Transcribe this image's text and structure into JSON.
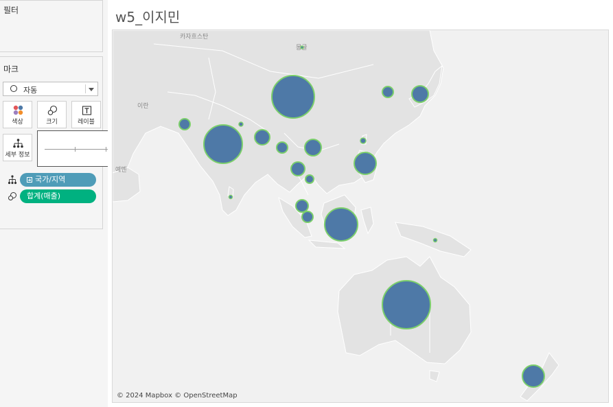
{
  "filters": {
    "title": "필터"
  },
  "marks": {
    "title": "마크",
    "mark_type": "자동",
    "buttons": {
      "color": "색상",
      "size": "크기",
      "label": "레이블",
      "detail": "세부 정보"
    },
    "pills": [
      {
        "label": "국가/지역",
        "kind": "detail",
        "color": "#4f9cb8"
      },
      {
        "label": "합계(매출)",
        "kind": "size",
        "color": "#00b180"
      }
    ]
  },
  "size_slider": {
    "value_fraction": 0.68
  },
  "sheet": {
    "title": "w5_이지민"
  },
  "map": {
    "credit": "© 2024 Mapbox © OpenStreetMap",
    "place_labels": [
      "카자흐스탄",
      "몽골",
      "이란",
      "예멘"
    ],
    "mark_color": "#4e79a7",
    "mark_stroke": "#7ccf6b"
  }
}
